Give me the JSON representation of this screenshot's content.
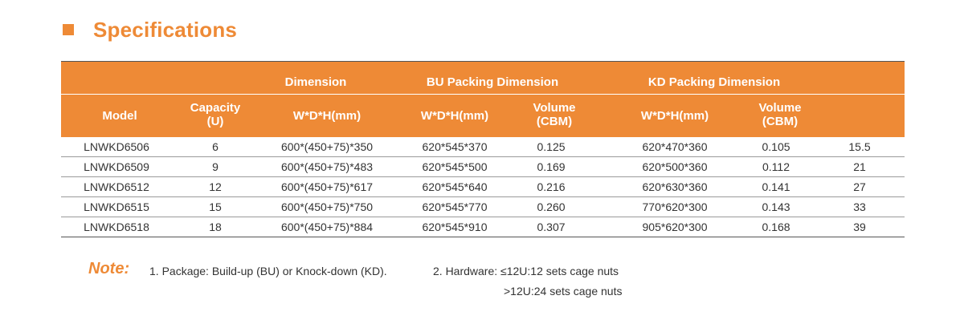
{
  "heading": {
    "title": "Specifications"
  },
  "table": {
    "groups": {
      "dimension": "Dimension",
      "bu": "BU Packing Dimension",
      "kd": "KD Packing Dimension"
    },
    "columns": {
      "model": "Model",
      "capacity_1": "Capacity",
      "capacity_2": "(U)",
      "dim_whd": "W*D*H(mm)",
      "bu_whd": "W*D*H(mm)",
      "bu_vol_1": "Volume",
      "bu_vol_2": "(CBM)",
      "kd_whd": "W*D*H(mm)",
      "kd_vol_1": "Volume",
      "kd_vol_2": "(CBM)"
    },
    "rows": [
      [
        "LNWKD6506",
        "6",
        "600*(450+75)*350",
        "620*545*370",
        "0.125",
        "620*470*360",
        "0.105",
        "15.5"
      ],
      [
        "LNWKD6509",
        "9",
        "600*(450+75)*483",
        "620*545*500",
        "0.169",
        "620*500*360",
        "0.112",
        "21"
      ],
      [
        "LNWKD6512",
        "12",
        "600*(450+75)*617",
        "620*545*640",
        "0.216",
        "620*630*360",
        "0.141",
        "27"
      ],
      [
        "LNWKD6515",
        "15",
        "600*(450+75)*750",
        "620*545*770",
        "0.260",
        "770*620*300",
        "0.143",
        "33"
      ],
      [
        "LNWKD6518",
        "18",
        "600*(450+75)*884",
        "620*545*910",
        "0.307",
        "905*620*300",
        "0.168",
        "39"
      ]
    ]
  },
  "note": {
    "label": "Note:",
    "item1": "1. Package: Build-up (BU)  or  Knock-down (KD).",
    "item2": "2. Hardware: ≤12U:12 sets cage nuts",
    "item3": ">12U:24 sets cage nuts"
  },
  "colors": {
    "accent": "#ee8a36"
  }
}
